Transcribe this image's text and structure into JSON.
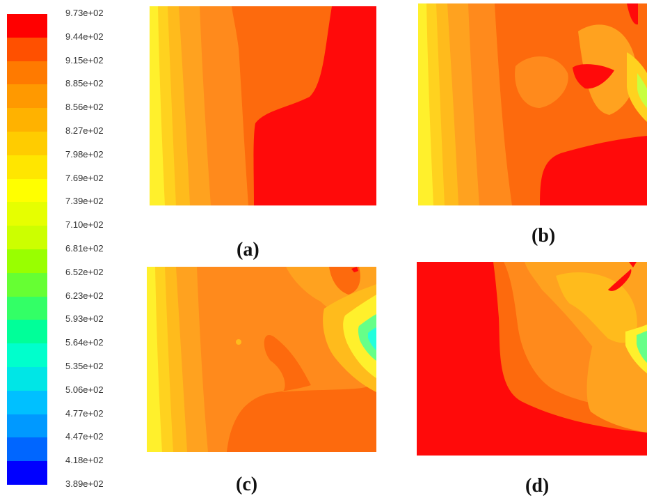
{
  "colorbar": {
    "labels": [
      "9.73e+02",
      "9.44e+02",
      "9.15e+02",
      "8.85e+02",
      "8.56e+02",
      "8.27e+02",
      "7.98e+02",
      "7.69e+02",
      "7.39e+02",
      "7.10e+02",
      "6.81e+02",
      "6.52e+02",
      "6.23e+02",
      "5.93e+02",
      "5.64e+02",
      "5.35e+02",
      "5.06e+02",
      "4.77e+02",
      "4.47e+02",
      "4.18e+02",
      "3.89e+02"
    ],
    "colors": [
      "#ff0000",
      "#ff5000",
      "#ff7a00",
      "#ff9900",
      "#ffb200",
      "#ffcc00",
      "#ffe600",
      "#ffff00",
      "#e6ff00",
      "#ccff00",
      "#99ff00",
      "#66ff33",
      "#33ff66",
      "#00ff99",
      "#00ffcc",
      "#00e6e6",
      "#00c0ff",
      "#0099ff",
      "#0066ff",
      "#0000ff"
    ]
  },
  "panels": {
    "a": {
      "caption": "(a)"
    },
    "b": {
      "caption": "(b)"
    },
    "c": {
      "caption": "(c)"
    },
    "d": {
      "caption": "(d)"
    }
  },
  "palette": {
    "red": "#ff0a0a",
    "orange_dark": "#fd6a0d",
    "orange": "#ff8a1c",
    "orange_light": "#ffa21f",
    "amber": "#ffbb1c",
    "yellow_deep": "#ffd21f",
    "yellow": "#fff02c",
    "green_yellow": "#c8ff40",
    "green": "#66ff88",
    "cyan": "#22ffdd"
  }
}
